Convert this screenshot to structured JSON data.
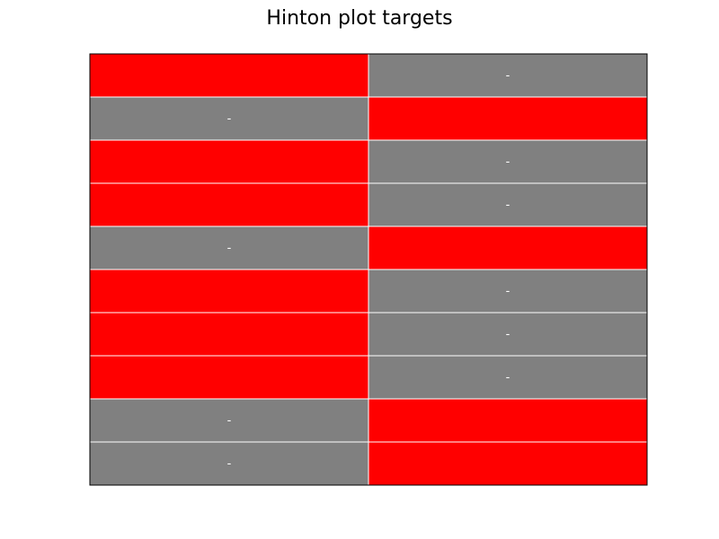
{
  "chart_data": {
    "type": "heatmap",
    "title": "Hinton plot targets",
    "xlabel": "",
    "ylabel": "",
    "n_rows": 10,
    "n_cols": 2,
    "positive_color": "#ff0000",
    "negative_color": "#808080",
    "cell_border_color": "#ffffff",
    "frame_color": "#000000",
    "negative_marker": "-",
    "grid": false,
    "legend": "none",
    "values": [
      [
        1,
        0
      ],
      [
        0,
        1
      ],
      [
        1,
        0
      ],
      [
        1,
        0
      ],
      [
        0,
        1
      ],
      [
        1,
        0
      ],
      [
        1,
        0
      ],
      [
        1,
        0
      ],
      [
        0,
        1
      ],
      [
        0,
        1
      ]
    ]
  }
}
